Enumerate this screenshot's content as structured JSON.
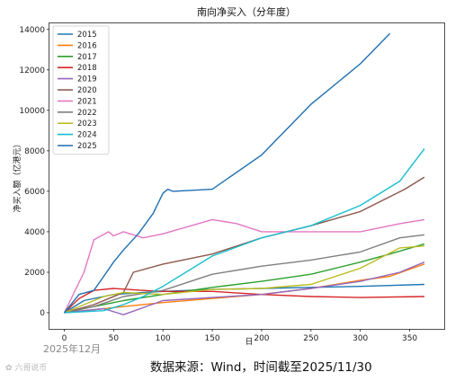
{
  "chart_data": {
    "type": "line",
    "title": "南向净买入（分年度）",
    "xlabel": "日",
    "ylabel": "净买入额（亿港元）",
    "xlim": [
      -15,
      385
    ],
    "ylim": [
      -800,
      14300
    ],
    "xticks": [
      0,
      50,
      100,
      150,
      200,
      250,
      300,
      350
    ],
    "yticks": [
      0,
      2000,
      4000,
      6000,
      8000,
      10000,
      12000,
      14000
    ],
    "legend_position": "top-left",
    "grid": false,
    "series": [
      {
        "name": "2015",
        "color": "#1f77b4",
        "x": [
          0,
          20,
          50,
          80,
          100,
          150,
          200,
          250,
          300,
          365
        ],
        "y": [
          0,
          600,
          900,
          1000,
          1050,
          1150,
          1200,
          1250,
          1300,
          1400
        ]
      },
      {
        "name": "2016",
        "color": "#ff7f0e",
        "x": [
          0,
          30,
          60,
          100,
          150,
          200,
          250,
          300,
          330,
          365
        ],
        "y": [
          0,
          150,
          300,
          500,
          700,
          900,
          1200,
          1600,
          1800,
          2400
        ]
      },
      {
        "name": "2017",
        "color": "#2ca02c",
        "x": [
          0,
          30,
          60,
          100,
          150,
          200,
          250,
          300,
          330,
          365
        ],
        "y": [
          0,
          300,
          600,
          900,
          1250,
          1550,
          1900,
          2500,
          2900,
          3400
        ]
      },
      {
        "name": "2018",
        "color": "#d62728",
        "x": [
          0,
          15,
          30,
          50,
          80,
          100,
          150,
          200,
          250,
          300,
          365
        ],
        "y": [
          0,
          700,
          1100,
          1200,
          1100,
          1050,
          1050,
          900,
          800,
          750,
          800
        ]
      },
      {
        "name": "2019",
        "color": "#9467bd",
        "x": [
          0,
          40,
          60,
          100,
          150,
          200,
          250,
          300,
          340,
          365
        ],
        "y": [
          0,
          200,
          -100,
          600,
          750,
          900,
          1200,
          1550,
          2000,
          2500
        ]
      },
      {
        "name": "2020",
        "color": "#8c564b",
        "x": [
          0,
          30,
          60,
          70,
          100,
          150,
          200,
          250,
          300,
          345,
          365
        ],
        "y": [
          0,
          400,
          1000,
          2000,
          2400,
          2900,
          3700,
          4300,
          5000,
          6100,
          6700
        ]
      },
      {
        "name": "2021",
        "color": "#e377c2",
        "x": [
          0,
          20,
          30,
          45,
          50,
          60,
          80,
          100,
          150,
          175,
          200,
          250,
          300,
          340,
          365
        ],
        "y": [
          0,
          2000,
          3600,
          4000,
          3800,
          4000,
          3700,
          3900,
          4600,
          4400,
          4000,
          4000,
          4000,
          4400,
          4600
        ]
      },
      {
        "name": "2022",
        "color": "#7f7f7f",
        "x": [
          0,
          30,
          60,
          100,
          150,
          200,
          250,
          300,
          340,
          365
        ],
        "y": [
          0,
          300,
          800,
          1100,
          1900,
          2300,
          2600,
          3000,
          3700,
          3850
        ]
      },
      {
        "name": "2023",
        "color": "#bcbd22",
        "x": [
          0,
          40,
          60,
          100,
          150,
          200,
          250,
          300,
          340,
          365
        ],
        "y": [
          0,
          800,
          1000,
          900,
          1150,
          1200,
          1400,
          2200,
          3200,
          3300
        ]
      },
      {
        "name": "2024",
        "color": "#17becf",
        "x": [
          0,
          40,
          60,
          80,
          100,
          150,
          200,
          250,
          300,
          340,
          365
        ],
        "y": [
          0,
          100,
          400,
          800,
          1300,
          2800,
          3700,
          4300,
          5300,
          6500,
          8100
        ]
      },
      {
        "name": "2025",
        "color": "#1f6fb0",
        "x": [
          0,
          15,
          30,
          40,
          50,
          60,
          75,
          90,
          100,
          105,
          110,
          150,
          200,
          250,
          300,
          330
        ],
        "y": [
          0,
          900,
          1100,
          1800,
          2500,
          3100,
          3900,
          4900,
          5900,
          6100,
          6000,
          6100,
          7800,
          10300,
          12300,
          13800
        ]
      }
    ]
  },
  "footer": "数据来源：Wind，时间截至2025/11/30",
  "stamp": "2025年12月",
  "watermark": "✿ 六哥说币"
}
